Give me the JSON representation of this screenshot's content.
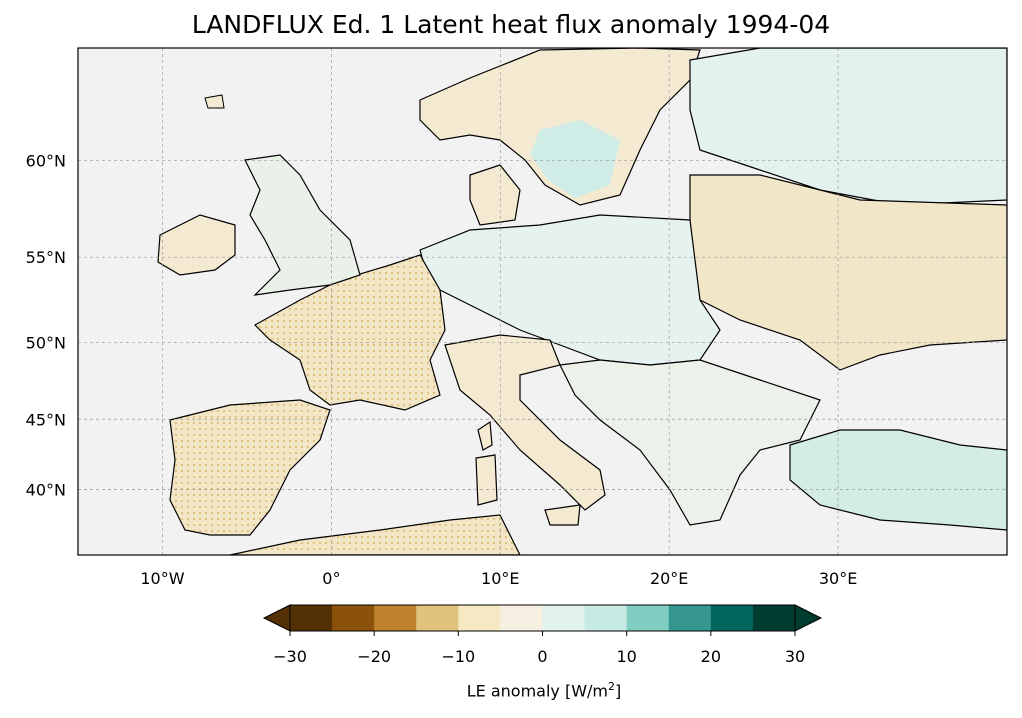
{
  "title": "LANDFLUX Ed. 1 Latent heat flux anomaly 1994-04",
  "map": {
    "lon_range": [
      -15,
      40
    ],
    "lat_range": [
      35,
      65
    ],
    "gridlines": true,
    "lon_ticks": [
      {
        "value": -10,
        "label": "10°W"
      },
      {
        "value": 0,
        "label": "0°"
      },
      {
        "value": 10,
        "label": "10°E"
      },
      {
        "value": 20,
        "label": "20°E"
      },
      {
        "value": 30,
        "label": "30°E"
      }
    ],
    "lat_ticks": [
      {
        "value": 60,
        "label": "60°N"
      },
      {
        "value": 55,
        "label": "55°N"
      },
      {
        "value": 50,
        "label": "50°N"
      },
      {
        "value": 45,
        "label": "45°N"
      },
      {
        "value": 40,
        "label": "40°N"
      }
    ],
    "ocean_color": "#f2f2f2",
    "coastline_color": "#000000"
  },
  "colorbar": {
    "label_text": "LE anomaly [W/m",
    "label_sup": "2",
    "label_close": "]",
    "extend": "both",
    "ticks": [
      {
        "value": -30,
        "label": "−30"
      },
      {
        "value": -20,
        "label": "−20"
      },
      {
        "value": -10,
        "label": "−10"
      },
      {
        "value": 0,
        "label": "0"
      },
      {
        "value": 10,
        "label": "10"
      },
      {
        "value": 20,
        "label": "20"
      },
      {
        "value": 30,
        "label": "30"
      }
    ],
    "colors": [
      "#543005",
      "#8c510a",
      "#bf812d",
      "#dfc27d",
      "#f6e8c3",
      "#f5f0e1",
      "#e0f1ee",
      "#c7eae5",
      "#80cdc1",
      "#35978f",
      "#01665e",
      "#003c30"
    ],
    "under_color": "#543005",
    "over_color": "#003c30"
  }
}
